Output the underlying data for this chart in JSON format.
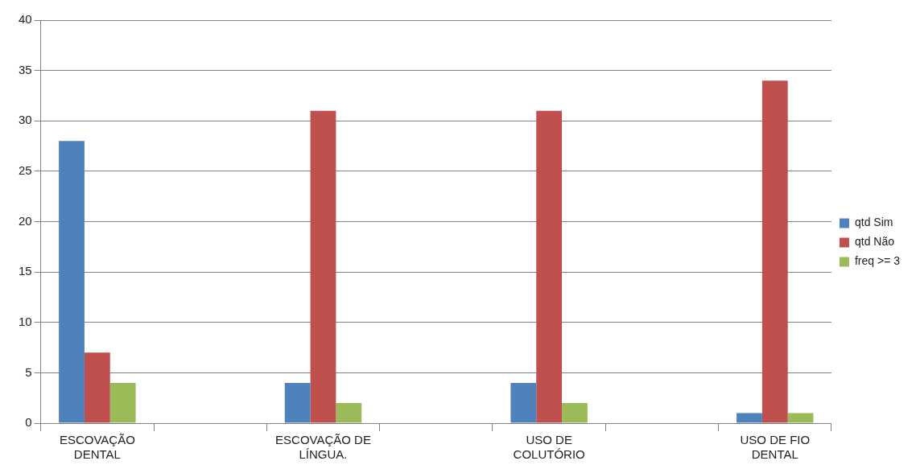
{
  "chart_data": {
    "type": "bar",
    "categories": [
      "ESCOVAÇÃO DENTAL",
      null,
      "ESCOVAÇÃO DE LÍNGUA.",
      null,
      "USO DE COLUTÓRIO",
      null,
      "USO DE FIO DENTAL"
    ],
    "series": [
      {
        "name": "qtd Sim",
        "color": "#4f81bd",
        "values": [
          28,
          null,
          4,
          null,
          4,
          null,
          1
        ]
      },
      {
        "name": "qtd Não",
        "color": "#c0504d",
        "values": [
          7,
          null,
          31,
          null,
          31,
          null,
          34
        ]
      },
      {
        "name": "freq >= 3",
        "color": "#9bbb59",
        "values": [
          4,
          null,
          2,
          null,
          2,
          null,
          1
        ]
      }
    ],
    "ylim": [
      0,
      40
    ],
    "yticks": [
      0,
      5,
      10,
      15,
      20,
      25,
      30,
      35,
      40
    ],
    "grid": "y",
    "legend": "right"
  }
}
